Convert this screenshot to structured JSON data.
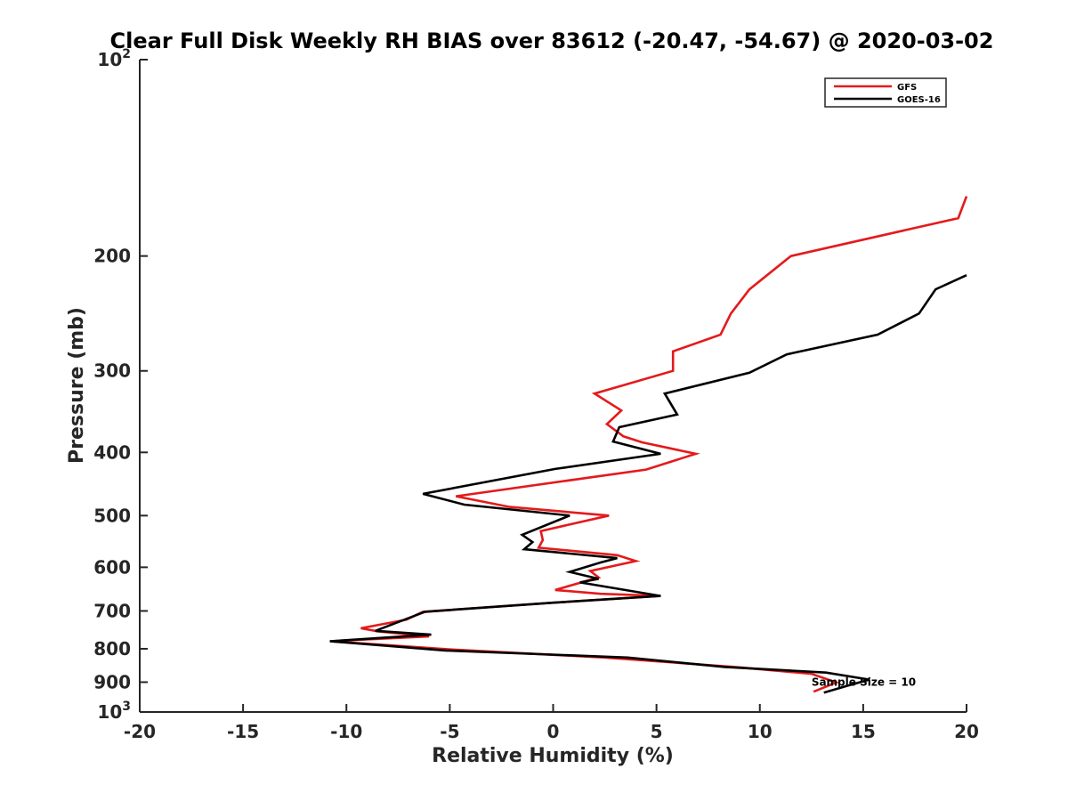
{
  "chart_data": {
    "type": "line",
    "title": "Clear Full Disk Weekly RH BIAS over 83612 (-20.47, -54.67) @ 2020-03-02",
    "xlabel": "Relative Humidity (%)",
    "ylabel": "Pressure (mb)",
    "xlim": [
      -20,
      20
    ],
    "ylim": [
      100,
      1000
    ],
    "yscale": "log",
    "yaxis_reversed": true,
    "grid": false,
    "legend_position": "top-right",
    "x_ticks": [
      {
        "value": -20,
        "label": "-20"
      },
      {
        "value": -15,
        "label": "-15"
      },
      {
        "value": -10,
        "label": "-10"
      },
      {
        "value": -5,
        "label": "-5"
      },
      {
        "value": 0,
        "label": "0"
      },
      {
        "value": 5,
        "label": "5"
      },
      {
        "value": 10,
        "label": "10"
      },
      {
        "value": 15,
        "label": "15"
      },
      {
        "value": 20,
        "label": "20"
      }
    ],
    "y_ticks": [
      {
        "value": 100,
        "label": "10",
        "sup": "2"
      },
      {
        "value": 200,
        "label": "200"
      },
      {
        "value": 300,
        "label": "300"
      },
      {
        "value": 400,
        "label": "400"
      },
      {
        "value": 500,
        "label": "500"
      },
      {
        "value": 600,
        "label": "600"
      },
      {
        "value": 700,
        "label": "700"
      },
      {
        "value": 800,
        "label": "800"
      },
      {
        "value": 900,
        "label": "900"
      },
      {
        "value": 1000,
        "label": "10",
        "sup": "3"
      }
    ],
    "series": [
      {
        "name": "GFS",
        "color": "#e41a1c",
        "points": [
          [
            20.0,
            162
          ],
          [
            19.6,
            175
          ],
          [
            11.5,
            200
          ],
          [
            9.5,
            225
          ],
          [
            8.6,
            245
          ],
          [
            8.1,
            264
          ],
          [
            5.8,
            280
          ],
          [
            5.8,
            300
          ],
          [
            2.0,
            325
          ],
          [
            3.3,
            345
          ],
          [
            2.6,
            362
          ],
          [
            3.4,
            378
          ],
          [
            4.3,
            386
          ],
          [
            6.9,
            402
          ],
          [
            4.5,
            425
          ],
          [
            -4.7,
            467
          ],
          [
            -2.1,
            485
          ],
          [
            2.7,
            500
          ],
          [
            -0.6,
            528
          ],
          [
            -0.5,
            545
          ],
          [
            -0.7,
            560
          ],
          [
            3.1,
            575
          ],
          [
            4.0,
            587
          ],
          [
            1.8,
            608
          ],
          [
            2.2,
            622
          ],
          [
            0.1,
            650
          ],
          [
            2.3,
            659
          ],
          [
            5.2,
            664
          ],
          [
            0.0,
            680
          ],
          [
            -6.3,
            702
          ],
          [
            -7.1,
            722
          ],
          [
            -9.3,
            744
          ],
          [
            -8.5,
            752
          ],
          [
            -6.0,
            766
          ],
          [
            -10.8,
            779
          ],
          [
            -4.9,
            802
          ],
          [
            2.5,
            825
          ],
          [
            9.0,
            854
          ],
          [
            12.5,
            874
          ],
          [
            13.7,
            901
          ],
          [
            12.6,
            931
          ]
        ]
      },
      {
        "name": "GOES-16",
        "color": "#000000",
        "points": [
          [
            20.0,
            214
          ],
          [
            18.5,
            225
          ],
          [
            17.7,
            245
          ],
          [
            15.7,
            264
          ],
          [
            11.3,
            283
          ],
          [
            9.5,
            302
          ],
          [
            5.4,
            325
          ],
          [
            6.0,
            350
          ],
          [
            3.2,
            366
          ],
          [
            2.9,
            385
          ],
          [
            5.2,
            402
          ],
          [
            0.1,
            424
          ],
          [
            -6.3,
            463
          ],
          [
            -4.3,
            481
          ],
          [
            0.8,
            500
          ],
          [
            -1.5,
            535
          ],
          [
            -1.0,
            549
          ],
          [
            -1.4,
            563
          ],
          [
            3.1,
            581
          ],
          [
            2.3,
            590
          ],
          [
            0.8,
            610
          ],
          [
            2.2,
            625
          ],
          [
            1.3,
            633
          ],
          [
            5.2,
            664
          ],
          [
            0.0,
            680
          ],
          [
            -6.2,
            702
          ],
          [
            -7.2,
            722
          ],
          [
            -8.6,
            751
          ],
          [
            -5.9,
            761
          ],
          [
            -10.8,
            779
          ],
          [
            -5.2,
            805
          ],
          [
            3.6,
            825
          ],
          [
            8.3,
            853
          ],
          [
            13.2,
            870
          ],
          [
            15.3,
            892
          ],
          [
            14.2,
            912
          ],
          [
            13.1,
            934
          ]
        ]
      }
    ],
    "annotations": [
      {
        "text": "Sample Size = 10",
        "x": 12.5,
        "y": 900
      }
    ]
  }
}
